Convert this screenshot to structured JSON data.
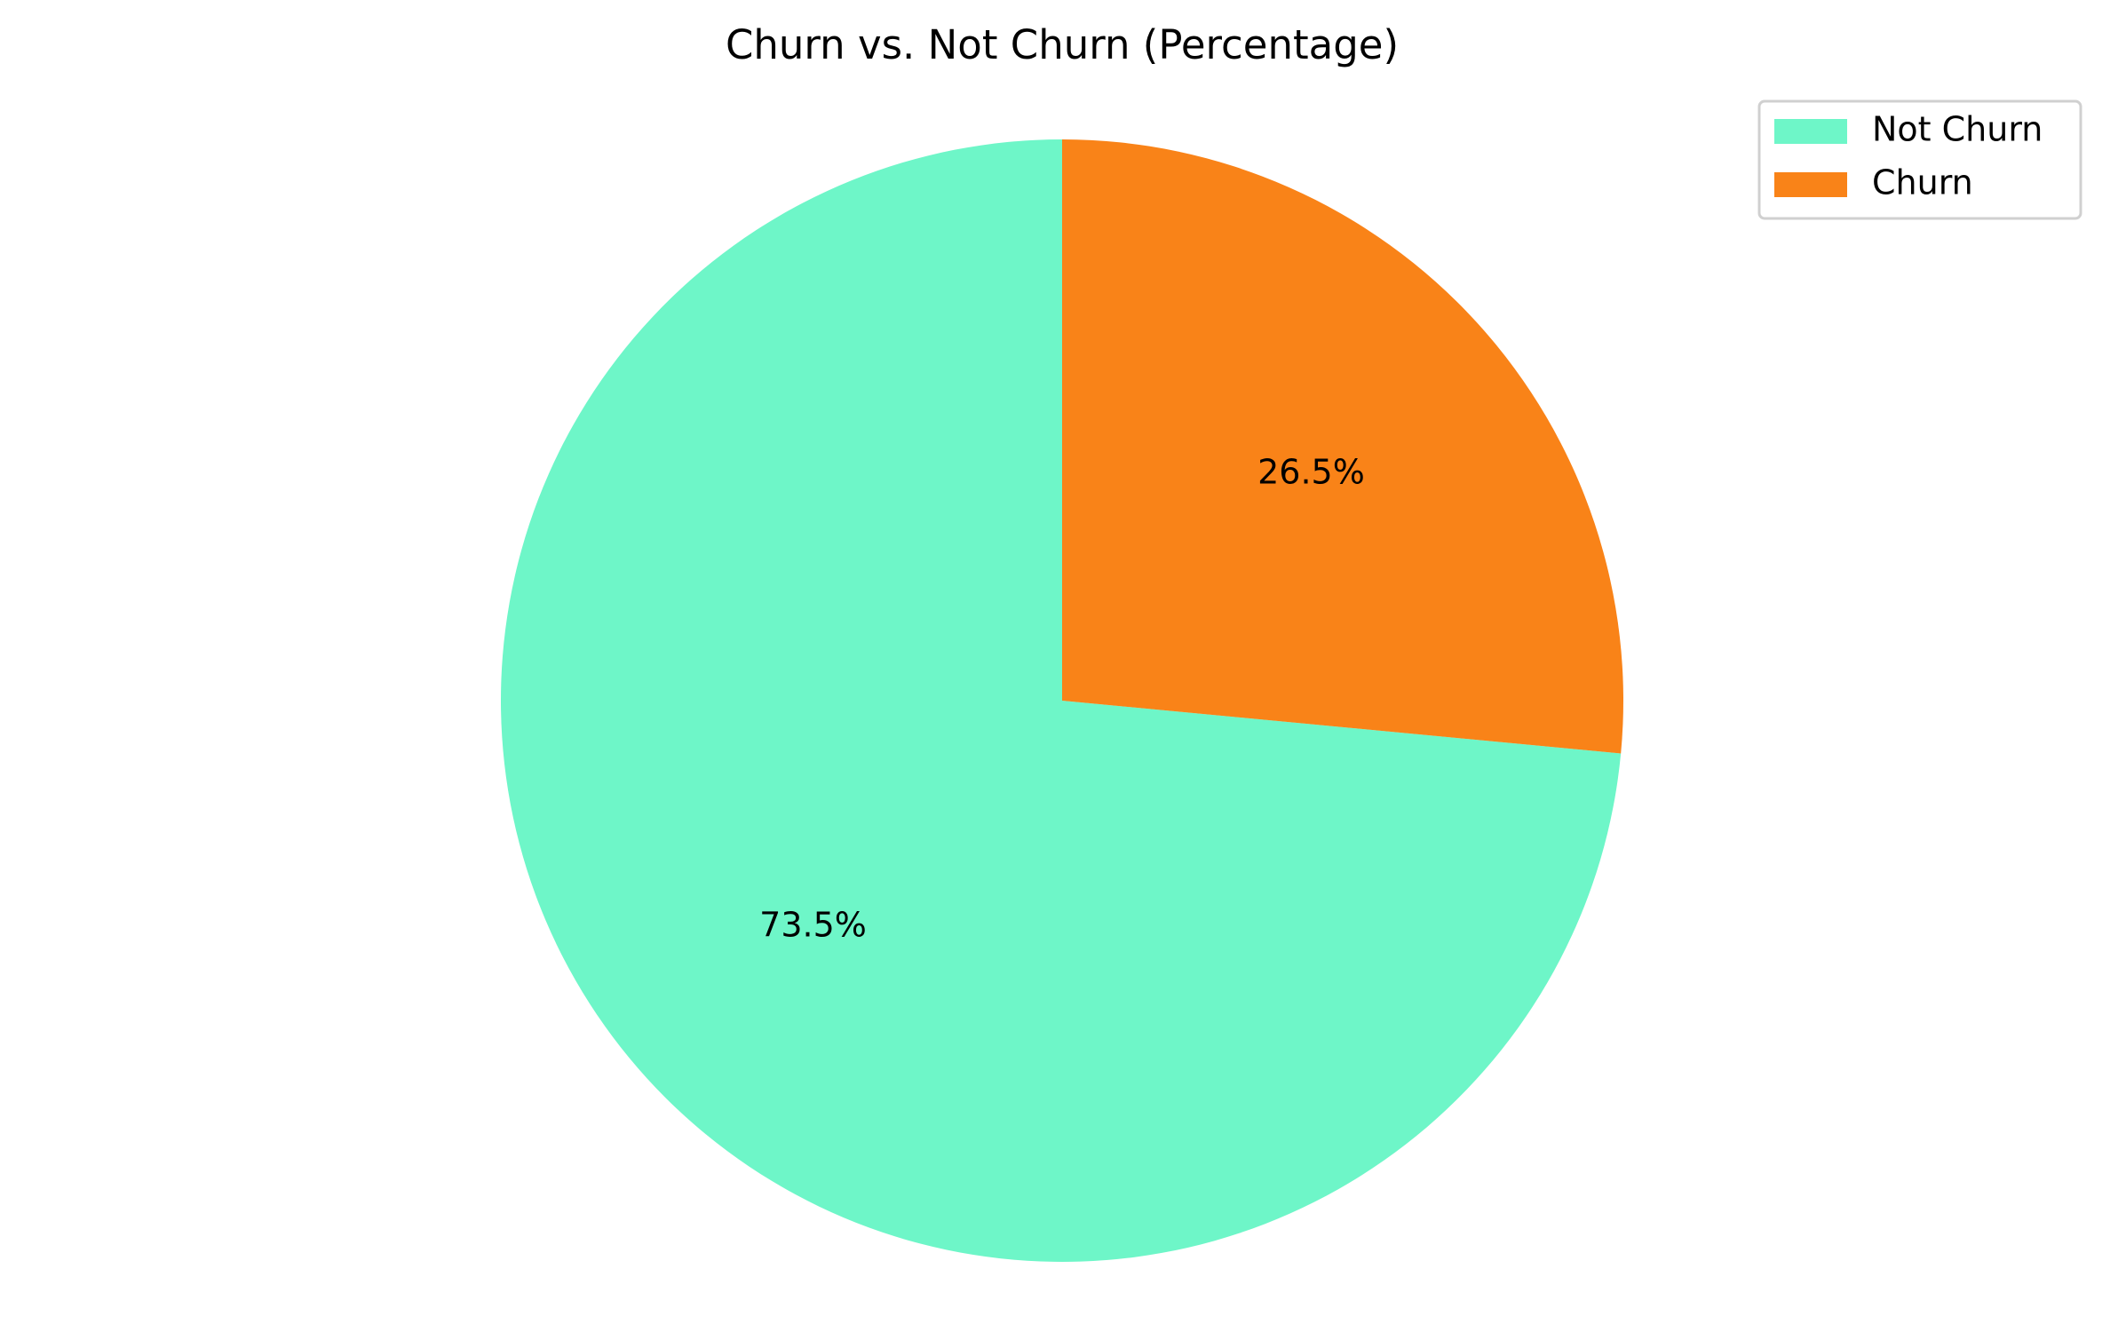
{
  "chart_data": {
    "type": "pie",
    "title": "Churn vs. Not Churn (Percentage)",
    "categories": [
      "Not Churn",
      "Churn"
    ],
    "values": [
      73.5,
      26.5
    ],
    "value_labels": [
      "73.5%",
      "26.5%"
    ],
    "colors": [
      "#6ef6c8",
      "#f98318"
    ],
    "start_angle_deg": 90,
    "direction": "counterclockwise",
    "legend": {
      "placement": "top-right",
      "entries": [
        "Not Churn",
        "Churn"
      ]
    }
  }
}
